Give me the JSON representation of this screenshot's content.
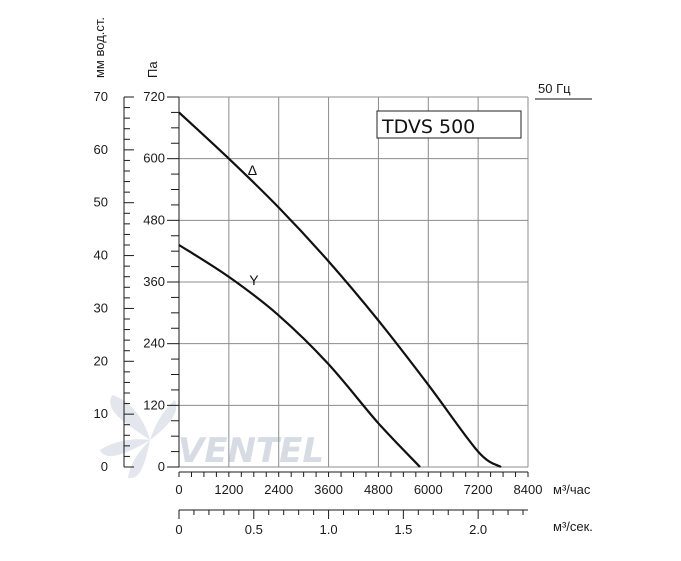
{
  "chart_data": {
    "type": "line",
    "title": "TDVS 500",
    "frequency_label": "50 Гц",
    "watermark": "VENTEL",
    "x_axis": {
      "label": "м³/час",
      "range": [
        0,
        8400
      ],
      "ticks": [
        0,
        1200,
        2400,
        3600,
        4800,
        6000,
        7200,
        8400
      ],
      "tick_labels": [
        "0",
        "1200",
        "2400",
        "3600",
        "4800",
        "6000",
        "7200",
        "8400"
      ]
    },
    "x2_axis": {
      "label": "м³/сек.",
      "ticks": [
        0,
        0.5,
        1.0,
        1.5,
        2.0
      ],
      "tick_labels": [
        "0",
        "0.5",
        "1.0",
        "1.5",
        "2.0"
      ]
    },
    "y_axis": {
      "label": "Па",
      "range": [
        0,
        720
      ],
      "ticks": [
        0,
        120,
        240,
        360,
        480,
        600,
        720
      ],
      "tick_labels": [
        "0",
        "120",
        "240",
        "360",
        "480",
        "600",
        "720"
      ]
    },
    "y2_axis": {
      "label": "мм вод.ст.",
      "range": [
        0,
        70
      ],
      "ticks": [
        0,
        10,
        20,
        30,
        40,
        50,
        60,
        70
      ],
      "tick_labels": [
        "0",
        "10",
        "20",
        "30",
        "40",
        "50",
        "60",
        "70"
      ]
    },
    "grid": true,
    "series": [
      {
        "name": "Δ",
        "x": [
          0,
          1200,
          2400,
          3600,
          4800,
          6000,
          7200,
          7750
        ],
        "y": [
          690,
          600,
          505,
          400,
          285,
          160,
          30,
          0
        ]
      },
      {
        "name": "Y",
        "x": [
          0,
          1200,
          2400,
          3600,
          4800,
          5800
        ],
        "y": [
          432,
          370,
          295,
          200,
          85,
          0
        ]
      }
    ],
    "colors": {
      "line": "#111111",
      "grid": "#8c8c8c",
      "watermark": "#d9dde6",
      "watermark_accent": "#c9d4ea"
    }
  }
}
